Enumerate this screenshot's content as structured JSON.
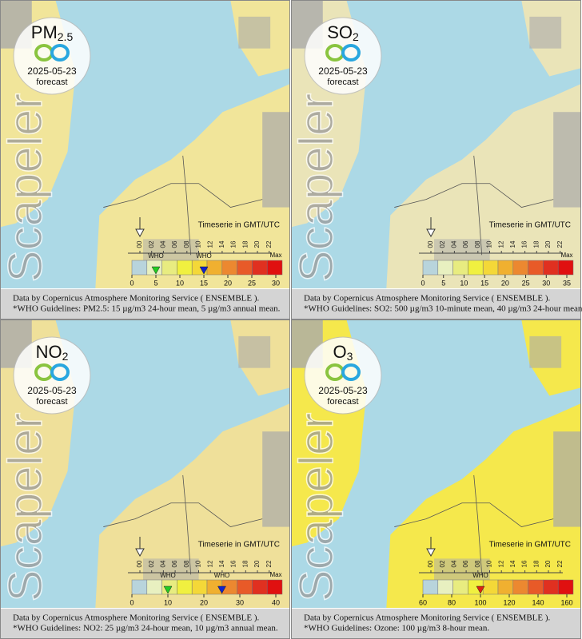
{
  "panels": [
    {
      "pollutant": "PM",
      "subscript": "2.5",
      "date": "2025-05-23",
      "status": "forecast",
      "brand": "Scapeler",
      "timeserie": "Timeserie in GMT/UTC",
      "hours": [
        "00",
        "02",
        "04",
        "06",
        "08",
        "10",
        "12",
        "14",
        "16",
        "18",
        "20",
        "22"
      ],
      "scale": {
        "ticks": [
          0,
          5,
          10,
          15,
          20,
          25,
          30
        ],
        "end_label": "Max"
      },
      "who": [
        {
          "label": "WHO",
          "value": 5,
          "color": "#22cc22"
        },
        {
          "label": "WHO",
          "value": 15,
          "color": "#1122cc"
        }
      ],
      "footer": [
        "Data by Copernicus Atmosphere Monitoring Service ( ENSEMBLE ).",
        "*WHO Guidelines: PM2.5: 15 µg/m3 24-hour mean, 5 µg/m3 annual mean."
      ]
    },
    {
      "pollutant": "SO",
      "subscript": "2",
      "date": "2025-05-23",
      "status": "forecast",
      "brand": "Scapeler",
      "timeserie": "Timeserie in GMT/UTC",
      "hours": [
        "00",
        "02",
        "04",
        "06",
        "08",
        "10",
        "12",
        "14",
        "16",
        "18",
        "20",
        "22"
      ],
      "scale": {
        "ticks": [
          0,
          5,
          10,
          15,
          20,
          25,
          30,
          35
        ],
        "end_label": "Max"
      },
      "who": [],
      "footer": [
        "Data by Copernicus Atmosphere Monitoring Service ( ENSEMBLE ).",
        "*WHO Guidelines: SO2: 500 µg/m3 10-minute mean, 40 µg/m3 24-hour mean."
      ]
    },
    {
      "pollutant": "NO",
      "subscript": "2",
      "date": "2025-05-23",
      "status": "forecast",
      "brand": "Scapeler",
      "timeserie": "Timeserie in GMT/UTC",
      "hours": [
        "00",
        "02",
        "04",
        "06",
        "08",
        "10",
        "12",
        "14",
        "16",
        "18",
        "20",
        "22"
      ],
      "scale": {
        "ticks": [
          0,
          10,
          20,
          30,
          40
        ],
        "end_label": "Max"
      },
      "who": [
        {
          "label": "WHO",
          "value": 10,
          "color": "#22cc22"
        },
        {
          "label": "WHO",
          "value": 25,
          "color": "#1122cc"
        }
      ],
      "footer": [
        "Data by Copernicus Atmosphere Monitoring Service ( ENSEMBLE ).",
        "*WHO Guidelines: NO2: 25 µg/m3 24-hour mean, 10 µg/m3 annual mean."
      ]
    },
    {
      "pollutant": "O",
      "subscript": "3",
      "date": "2025-05-23",
      "status": "forecast",
      "brand": "Scapeler",
      "timeserie": "Timeserie in GMT/UTC",
      "hours": [
        "00",
        "02",
        "04",
        "06",
        "08",
        "10",
        "12",
        "14",
        "16",
        "18",
        "20",
        "22"
      ],
      "scale": {
        "ticks": [
          60,
          80,
          100,
          120,
          140,
          160
        ]
      },
      "who": [
        {
          "label": "WHO",
          "value": 100,
          "color": "#dd2211"
        }
      ],
      "footer": [
        "Data by Copernicus Atmosphere Monitoring Service ( ENSEMBLE ).",
        "*WHO Guidelines: Ozone: 100 µg/m3 8-hour mean."
      ]
    }
  ]
}
